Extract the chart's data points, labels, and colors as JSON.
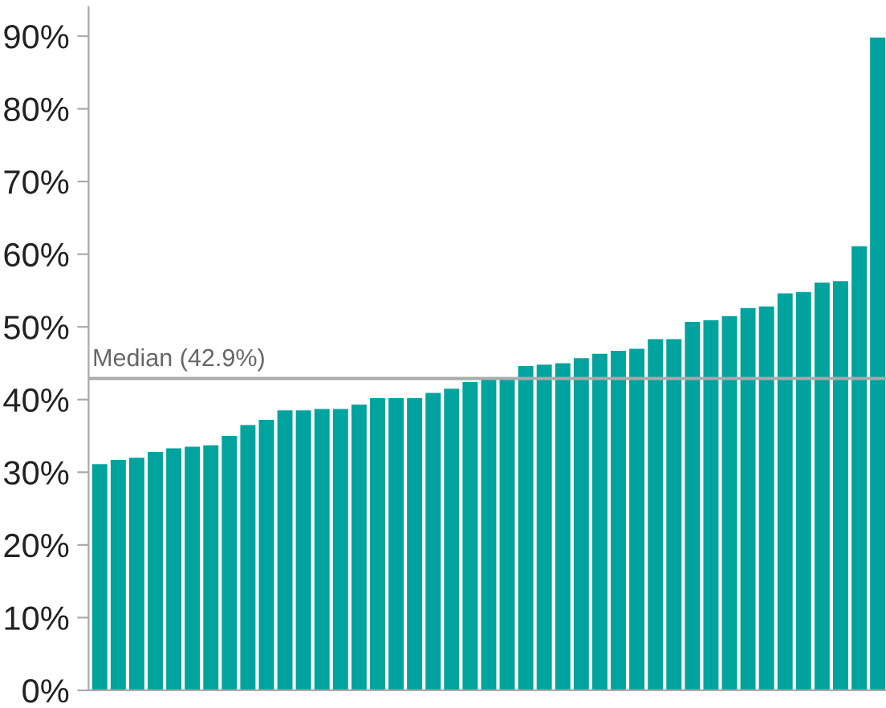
{
  "chart_data": {
    "type": "bar",
    "categories": [
      null,
      null,
      null,
      null,
      null,
      null,
      null,
      null,
      null,
      null,
      null,
      null,
      null,
      null,
      null,
      null,
      null,
      null,
      null,
      null,
      null,
      null,
      null,
      null,
      null,
      null,
      null,
      null,
      null,
      null,
      null,
      null,
      null,
      null,
      null,
      null,
      null,
      null,
      null,
      null,
      null,
      null,
      null
    ],
    "values": [
      31.1,
      31.7,
      32.0,
      32.8,
      33.3,
      33.5,
      33.7,
      35.0,
      36.5,
      37.2,
      38.5,
      38.5,
      38.7,
      38.7,
      39.3,
      40.2,
      40.2,
      40.2,
      40.9,
      41.5,
      42.4,
      42.9,
      43.0,
      44.6,
      44.8,
      45.0,
      45.7,
      46.3,
      46.7,
      47.0,
      48.3,
      48.3,
      50.7,
      50.9,
      51.5,
      52.6,
      52.8,
      54.6,
      54.8,
      56.1,
      56.3,
      61.1,
      89.8
    ],
    "color": "#00a39d",
    "ylim": [
      0,
      94
    ],
    "yticks": [
      {
        "value": 0,
        "label": "0%"
      },
      {
        "value": 10,
        "label": "10%"
      },
      {
        "value": 20,
        "label": "20%"
      },
      {
        "value": 30,
        "label": "30%"
      },
      {
        "value": 40,
        "label": "40%"
      },
      {
        "value": 50,
        "label": "50%"
      },
      {
        "value": 60,
        "label": "60%"
      },
      {
        "value": 70,
        "label": "70%"
      },
      {
        "value": 80,
        "label": "80%"
      },
      {
        "value": 90,
        "label": "90%"
      }
    ],
    "ref_lines": [
      {
        "axis": "y",
        "value": 42.9,
        "label": "Median (42.9%)",
        "color": "#aaaaaa"
      }
    ],
    "grid": false,
    "legend": false
  }
}
